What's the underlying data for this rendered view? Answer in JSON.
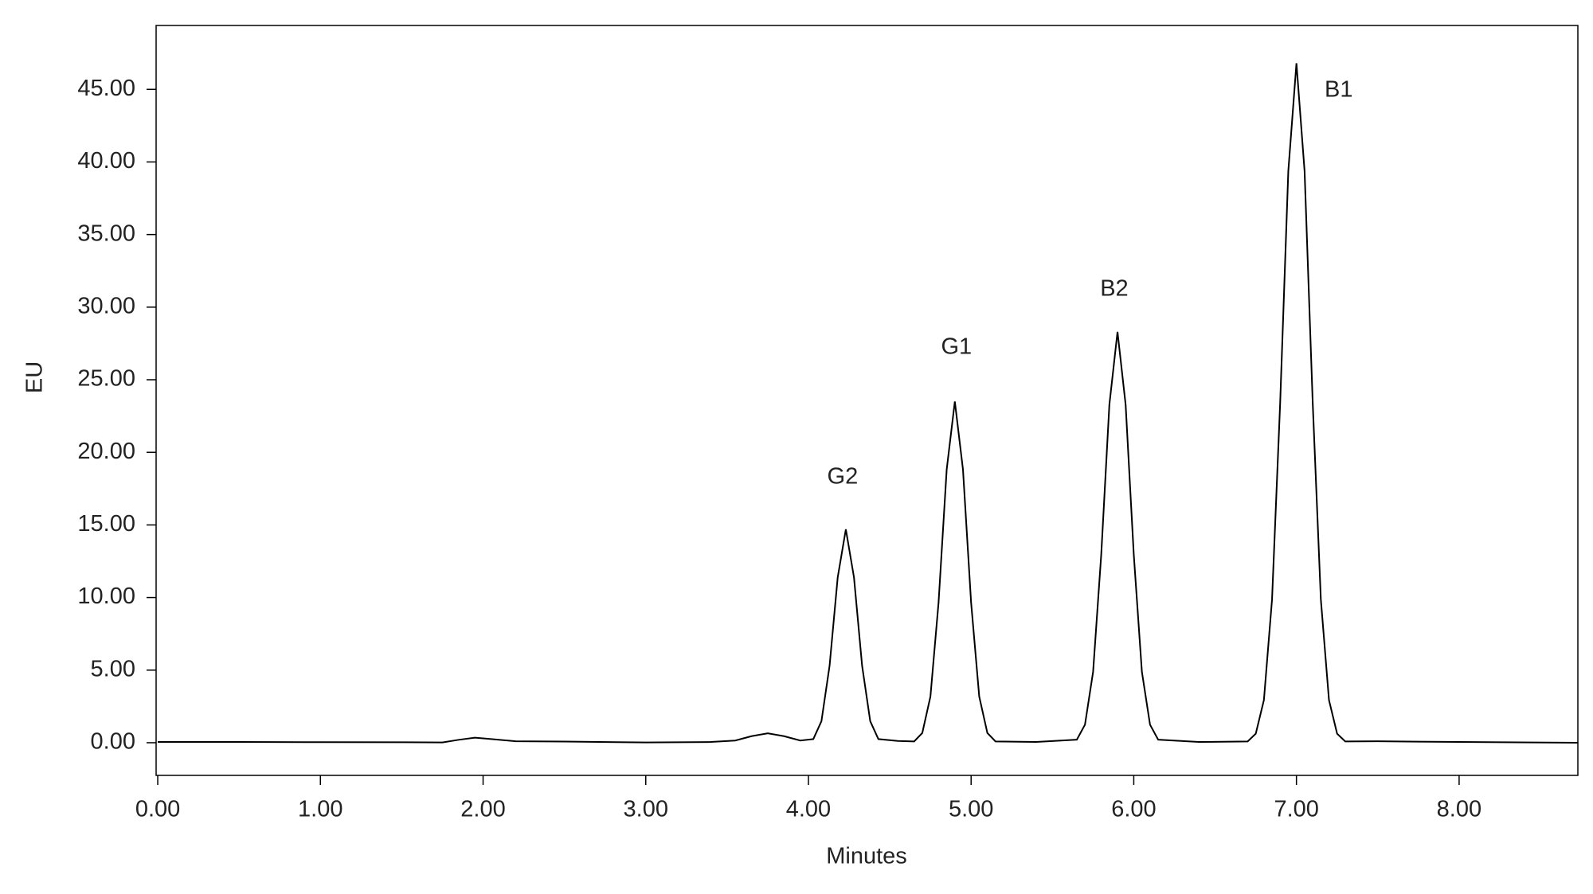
{
  "chart_data": {
    "type": "line",
    "xlabel": "Minutes",
    "ylabel": "EU",
    "xlim": [
      -0.01,
      8.73
    ],
    "ylim": [
      -2.25,
      49.4
    ],
    "xticks": [
      {
        "value": 0,
        "label": "0.00"
      },
      {
        "value": 1,
        "label": "1.00"
      },
      {
        "value": 2,
        "label": "2.00"
      },
      {
        "value": 3,
        "label": "3.00"
      },
      {
        "value": 4,
        "label": "4.00"
      },
      {
        "value": 5,
        "label": "5.00"
      },
      {
        "value": 6,
        "label": "6.00"
      },
      {
        "value": 7,
        "label": "7.00"
      },
      {
        "value": 8,
        "label": "8.00"
      }
    ],
    "yticks": [
      {
        "value": 0,
        "label": "0.00"
      },
      {
        "value": 5,
        "label": "5.00"
      },
      {
        "value": 10,
        "label": "10.00"
      },
      {
        "value": 15,
        "label": "15.00"
      },
      {
        "value": 20,
        "label": "20.00"
      },
      {
        "value": 25,
        "label": "25.00"
      },
      {
        "value": 30,
        "label": "30.00"
      },
      {
        "value": 35,
        "label": "35.00"
      },
      {
        "value": 40,
        "label": "40.00"
      },
      {
        "value": 45,
        "label": "45.00"
      }
    ],
    "color": "#000000",
    "x": [
      0,
      0.5,
      1.0,
      1.5,
      1.75,
      1.85,
      1.95,
      2.05,
      2.2,
      2.5,
      3.0,
      3.4,
      3.55,
      3.65,
      3.75,
      3.85,
      3.95,
      4.03,
      4.08,
      4.13,
      4.18,
      4.23,
      4.28,
      4.33,
      4.38,
      4.43,
      4.55,
      4.65,
      4.7,
      4.75,
      4.8,
      4.85,
      4.9,
      4.95,
      5.0,
      5.05,
      5.1,
      5.15,
      5.4,
      5.65,
      5.7,
      5.75,
      5.8,
      5.85,
      5.9,
      5.95,
      6.0,
      6.05,
      6.1,
      6.15,
      6.4,
      6.7,
      6.75,
      6.8,
      6.85,
      6.9,
      6.95,
      7.0,
      7.05,
      7.1,
      7.15,
      7.2,
      7.25,
      7.3,
      7.5,
      8.0,
      8.73
    ],
    "values": [
      0.05,
      0.05,
      0.04,
      0.03,
      0.02,
      0.2,
      0.35,
      0.25,
      0.1,
      0.08,
      0.02,
      0.05,
      0.15,
      0.45,
      0.65,
      0.45,
      0.15,
      0.25,
      1.48,
      5.3,
      11.39,
      14.7,
      11.39,
      5.3,
      1.48,
      0.25,
      0.12,
      0.09,
      0.67,
      3.18,
      9.66,
      18.82,
      23.5,
      18.82,
      9.66,
      3.18,
      0.67,
      0.09,
      0.05,
      0.21,
      1.24,
      4.88,
      12.96,
      23.28,
      28.3,
      23.28,
      12.96,
      4.88,
      1.24,
      0.21,
      0.05,
      0.09,
      0.62,
      2.94,
      9.87,
      23.42,
      39.37,
      46.8,
      39.37,
      23.42,
      9.87,
      2.94,
      0.62,
      0.09,
      0.1,
      0.05,
      0
    ],
    "annotations": [
      {
        "text": "G2",
        "x": 4.21,
        "y": 18.26
      },
      {
        "text": "G1",
        "x": 4.91,
        "y": 27.2
      },
      {
        "text": "B2",
        "x": 5.88,
        "y": 31.2
      },
      {
        "text": "B1",
        "x": 7.26,
        "y": 44.9
      }
    ]
  }
}
